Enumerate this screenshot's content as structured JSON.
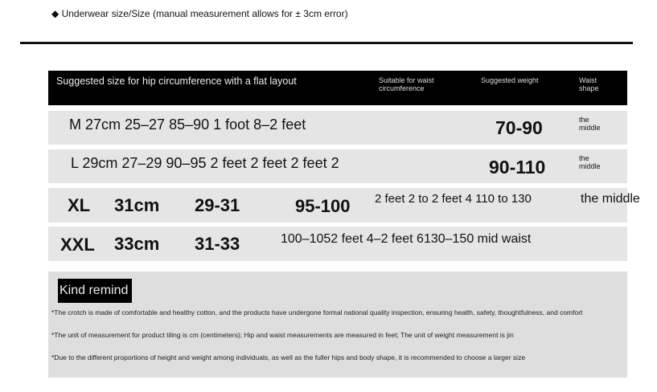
{
  "title": "◆ Underwear size/Size (manual measurement allows for ± 3cm error)",
  "header": {
    "col1": "Suggested size for hip circumference with a flat layout",
    "col2": "Suitable for waist circumference",
    "col3": "Suggested weight",
    "col4": "Waist shape"
  },
  "rows": [
    {
      "text": "M 27cm 25–27 85–90 1 foot 8–2 feet",
      "weight": "70-90",
      "shape": "the middle"
    },
    {
      "text": "L 29cm 27–29 90–95 2 feet 2 feet 2 feet 2",
      "weight": "90-110",
      "shape": "the middle"
    },
    {
      "size": "XL",
      "length": "31cm",
      "waist": "29-31",
      "hip": "95-100",
      "text": "2 feet 2 to 2 feet 4 110 to 130",
      "shape": "the middle"
    },
    {
      "size": "XXL",
      "length": "33cm",
      "waist": "31-33",
      "text": "100–1052 feet 4–2 feet 6130–150 mid waist"
    }
  ],
  "remind": {
    "label": "Kind remind",
    "notes": [
      "*The crotch is made of comfortable and healthy cotton, and the products have undergone formal national quality inspection, ensuring health, safety, thoughtfulness, and comfort",
      "*The unit of measurement for product tiling is cm (centimeters); Hip and waist measurements are measured in feet; The unit of weight measurement is jin",
      "*Due to the different proportions of height and weight among individuals, as well as the fuller hips and body shape, it is recommended to choose a larger size"
    ]
  }
}
